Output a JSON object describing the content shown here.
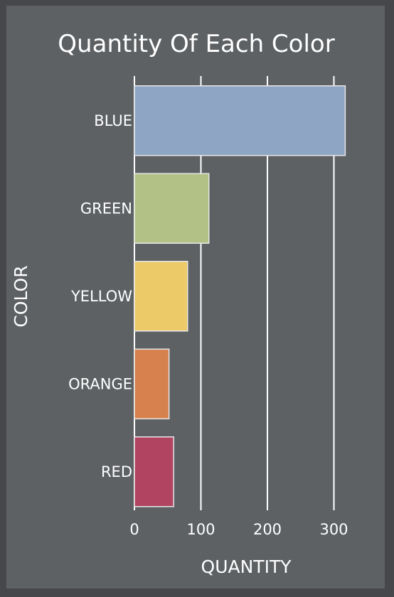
{
  "chart_data": {
    "type": "bar",
    "orientation": "horizontal",
    "title": "Quantity Of Each Color",
    "xlabel": "QUANTITY",
    "ylabel": "COLOR",
    "categories": [
      "BLUE",
      "GREEN",
      "YELLOW",
      "ORANGE",
      "RED"
    ],
    "values": [
      317,
      112,
      80,
      52,
      59
    ],
    "xlim": [
      0,
      350
    ],
    "xticks": [
      0,
      100,
      200,
      300
    ],
    "grid": true,
    "colors": [
      "#8ea6c4",
      "#b2c287",
      "#ecca67",
      "#d6814e",
      "#b14461"
    ],
    "background": "#5e6164",
    "outer_background": "#45474a"
  }
}
